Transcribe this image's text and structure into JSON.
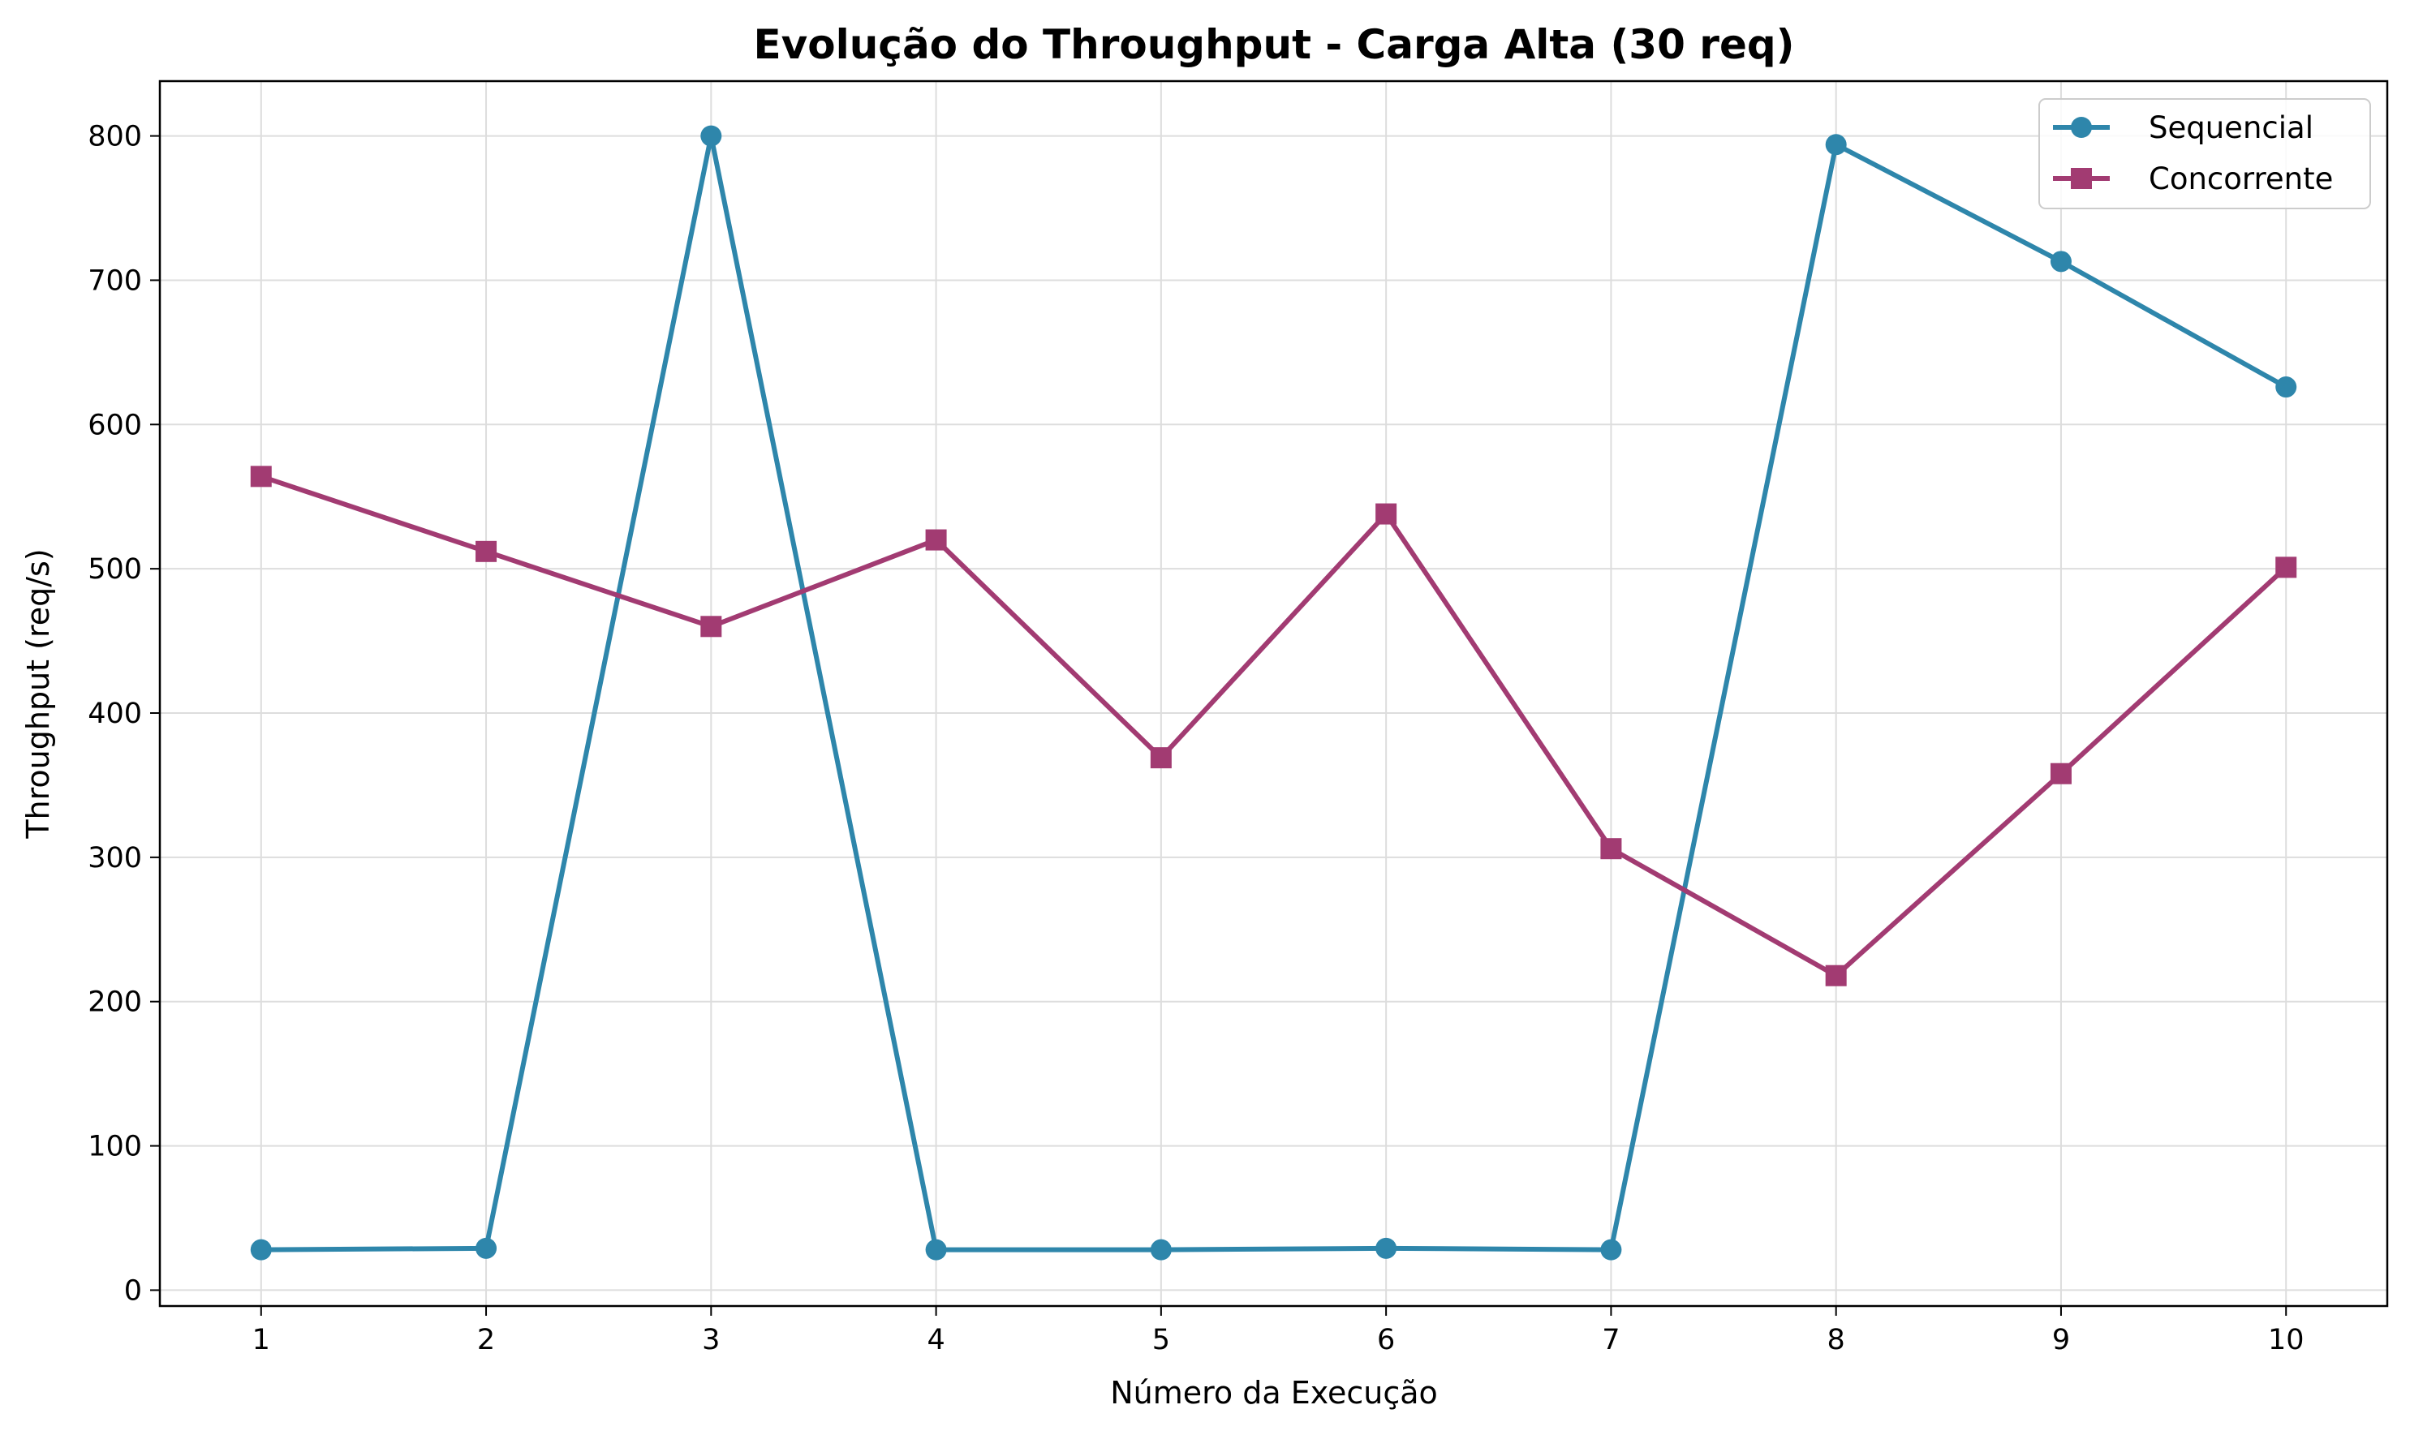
{
  "chart_data": {
    "type": "line",
    "title": "Evolução do Throughput - Carga Alta (30 req)",
    "xlabel": "Número da Execução",
    "ylabel": "Throughput (req/s)",
    "x": [
      1,
      2,
      3,
      4,
      5,
      6,
      7,
      8,
      9,
      10
    ],
    "xlim": [
      0.55,
      10.45
    ],
    "ylim": [
      -11,
      838
    ],
    "xticks": [
      1,
      2,
      3,
      4,
      5,
      6,
      7,
      8,
      9,
      10
    ],
    "yticks": [
      0,
      100,
      200,
      300,
      400,
      500,
      600,
      700,
      800
    ],
    "grid": true,
    "legend_position": "top-right",
    "series": [
      {
        "name": "Sequencial",
        "color": "#2E86AB",
        "marker": "circle",
        "values": [
          28,
          29,
          800,
          28,
          28,
          29,
          28,
          794,
          713,
          626
        ]
      },
      {
        "name": "Concorrente",
        "color": "#A23B72",
        "marker": "square",
        "values": [
          564,
          512,
          460,
          520,
          369,
          538,
          306,
          218,
          358,
          501
        ]
      }
    ]
  }
}
